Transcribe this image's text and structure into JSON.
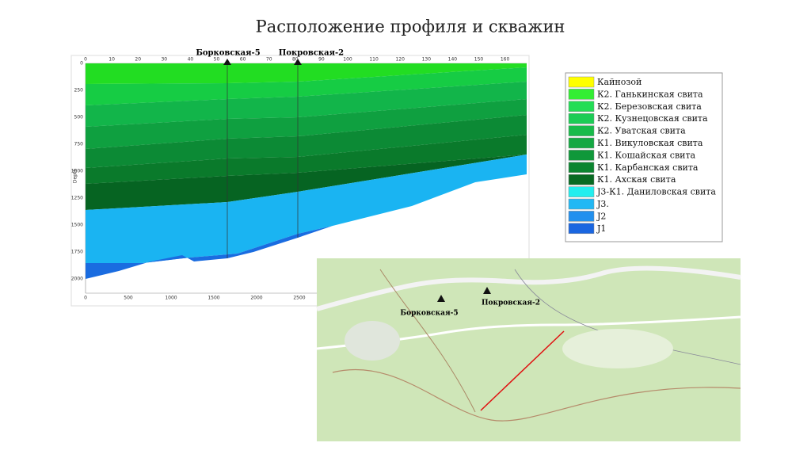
{
  "title": "Расположение профиля и скважин",
  "profile": {
    "top_ticks": [
      0,
      10,
      20,
      30,
      40,
      50,
      60,
      70,
      80,
      90,
      100,
      110,
      120,
      130,
      140,
      150,
      160
    ],
    "depth_ticks": [
      0,
      250,
      500,
      750,
      1000,
      1250,
      1500,
      1750,
      2000
    ],
    "bottom_ticks": [
      0,
      500,
      1000,
      1500,
      2000,
      2500
    ],
    "depth_label": "Depth",
    "wells": [
      "Борковская-5",
      "Покровская-2"
    ]
  },
  "legend": [
    {
      "name": "Кайнозой",
      "color": "#ffff00"
    },
    {
      "name": "К2. Ганькинская свита",
      "color": "#33ee33"
    },
    {
      "name": "К2. Березовская свита",
      "color": "#22dd55"
    },
    {
      "name": "К2. Кузнецовская свита",
      "color": "#1ccc55"
    },
    {
      "name": "К2. Уватская свита",
      "color": "#18bb4a"
    },
    {
      "name": "К1. Викуловская свита",
      "color": "#14a842"
    },
    {
      "name": "К1. Кошайская свита",
      "color": "#10983a"
    },
    {
      "name": "К1. Карбанская свита",
      "color": "#0c8530"
    },
    {
      "name": "К1. Ахская свита",
      "color": "#086a22"
    },
    {
      "name": "J3-К1. Даниловская свита",
      "color": "#22eeee"
    },
    {
      "name": "J3.",
      "color": "#22b8f4"
    },
    {
      "name": "J2",
      "color": "#2290ee"
    },
    {
      "name": "J1",
      "color": "#1a66e0"
    }
  ],
  "map": {
    "wells": [
      "Борковская-5",
      "Покровская-2"
    ]
  }
}
